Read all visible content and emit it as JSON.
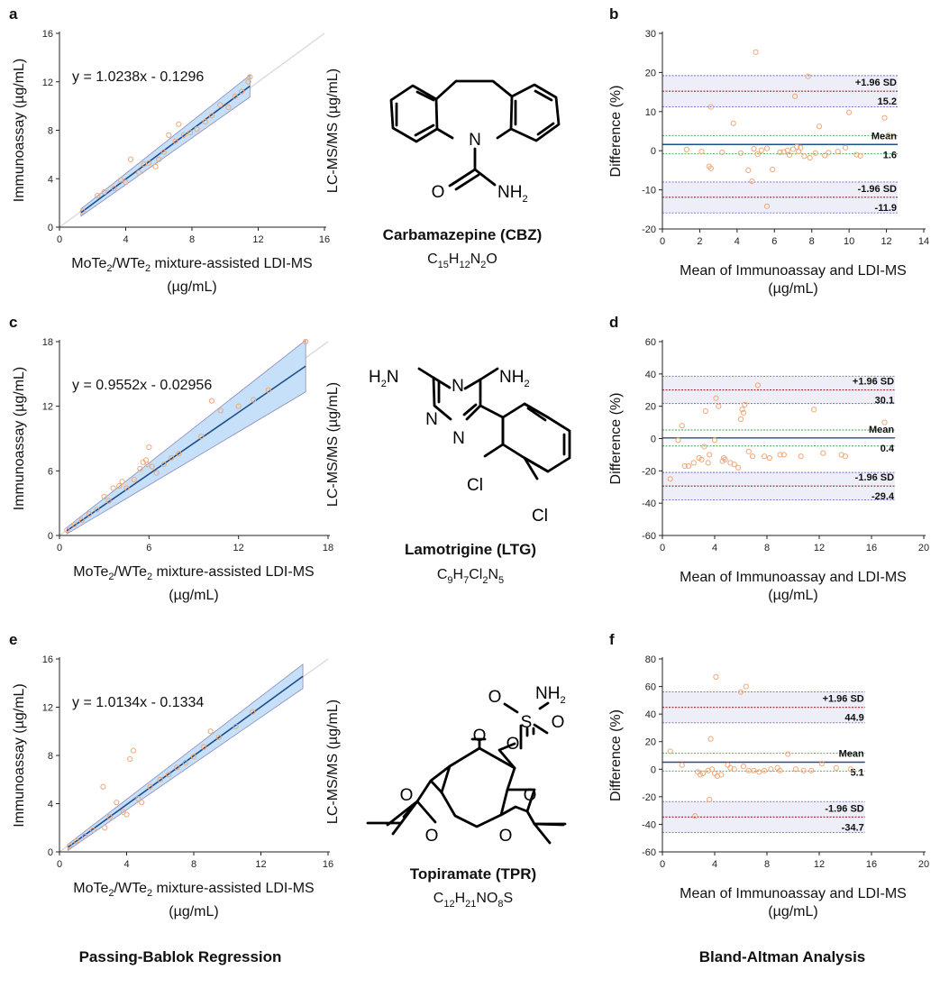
{
  "chart_data": [
    {
      "panel": "a",
      "type": "scatter",
      "xlabel_parts": [
        "MoTe",
        "2",
        "/WTe",
        "2",
        " mixture-assisted LDI-MS"
      ],
      "xlabel_line2": "(µg/mL)",
      "ylabel": "Immunoassay (µg/mL)",
      "equation": "y = 1.0238x - 0.1296",
      "slope": 1.0238,
      "intercept": -0.1296,
      "xlim": [
        0,
        16
      ],
      "ylim": [
        0,
        16
      ],
      "xticks": [
        0,
        4,
        8,
        12,
        16
      ],
      "yticks": [
        0,
        4,
        8,
        12,
        16
      ],
      "fit_range": [
        1.3,
        11.5
      ],
      "ci_width": [
        0.3,
        0.9
      ],
      "points": [
        [
          1.4,
          1.3
        ],
        [
          2.3,
          2.6
        ],
        [
          2.7,
          2.9
        ],
        [
          3.3,
          3.2
        ],
        [
          3.7,
          3.9
        ],
        [
          4.0,
          3.7
        ],
        [
          4.3,
          5.6
        ],
        [
          4.8,
          4.5
        ],
        [
          5.1,
          5.2
        ],
        [
          5.4,
          5.3
        ],
        [
          5.8,
          5.0
        ],
        [
          6.0,
          5.6
        ],
        [
          6.3,
          6.2
        ],
        [
          6.6,
          7.6
        ],
        [
          7.0,
          7.1
        ],
        [
          7.2,
          8.5
        ],
        [
          7.5,
          7.6
        ],
        [
          7.9,
          7.8
        ],
        [
          8.3,
          8.1
        ],
        [
          8.8,
          8.7
        ],
        [
          9.2,
          9.2
        ],
        [
          9.7,
          10.1
        ],
        [
          10.2,
          9.9
        ],
        [
          10.6,
          10.8
        ],
        [
          11.0,
          11.2
        ],
        [
          11.4,
          12.0
        ],
        [
          11.5,
          12.4
        ]
      ]
    },
    {
      "panel": "b",
      "type": "scatter",
      "xlabel": "Mean of Immunoassay and LDI-MS",
      "xlabel_line2": "(µg/mL)",
      "ylabel": "Difference (%)",
      "xlim": [
        0,
        14
      ],
      "ylim": [
        -20,
        30
      ],
      "xticks": [
        0,
        2,
        4,
        6,
        8,
        10,
        12,
        14
      ],
      "yticks": [
        -20,
        -10,
        0,
        10,
        20,
        30
      ],
      "mean": 1.6,
      "upper": 15.2,
      "lower": -11.9,
      "mean_ci": [
        -0.8,
        3.9
      ],
      "upper_ci": [
        11.2,
        19.2
      ],
      "lower_ci": [
        -15.9,
        -8.0
      ],
      "line_end_x": 12.6,
      "labels": {
        "upper": "+1.96 SD",
        "upper_val": "15.2",
        "mean": "Mean",
        "mean_val": "1.6",
        "lower": "-1.96 SD",
        "lower_val": "-11.9"
      },
      "points": [
        [
          1.3,
          0.3
        ],
        [
          2.1,
          -0.2
        ],
        [
          2.5,
          -4.0
        ],
        [
          2.6,
          -4.5
        ],
        [
          2.6,
          11.2
        ],
        [
          3.2,
          -0.4
        ],
        [
          3.8,
          7.0
        ],
        [
          4.2,
          -0.6
        ],
        [
          4.6,
          -5.0
        ],
        [
          4.8,
          -7.8
        ],
        [
          4.9,
          0.5
        ],
        [
          5.0,
          25.2
        ],
        [
          5.1,
          -0.9
        ],
        [
          5.3,
          0.1
        ],
        [
          5.6,
          -14.2
        ],
        [
          5.6,
          0.6
        ],
        [
          5.9,
          -4.8
        ],
        [
          6.3,
          -0.4
        ],
        [
          6.5,
          -0.3
        ],
        [
          6.7,
          0.1
        ],
        [
          6.8,
          -1.1
        ],
        [
          7.0,
          0.4
        ],
        [
          7.1,
          13.9
        ],
        [
          7.2,
          1.0
        ],
        [
          7.3,
          -0.2
        ],
        [
          7.4,
          0.8
        ],
        [
          7.6,
          -1.4
        ],
        [
          7.8,
          19.0
        ],
        [
          7.9,
          -1.8
        ],
        [
          8.2,
          -0.6
        ],
        [
          8.4,
          6.2
        ],
        [
          8.7,
          -1.2
        ],
        [
          8.9,
          -0.5
        ],
        [
          9.4,
          -0.2
        ],
        [
          9.8,
          0.8
        ],
        [
          10.0,
          9.8
        ],
        [
          10.4,
          -1.0
        ],
        [
          10.6,
          -1.3
        ],
        [
          11.9,
          8.4
        ],
        [
          12.1,
          4.0
        ]
      ]
    },
    {
      "panel": "c",
      "type": "scatter",
      "xlabel_parts": [
        "MoTe",
        "2",
        "/WTe",
        "2",
        " mixture-assisted LDI-MS"
      ],
      "xlabel_line2": "(µg/mL)",
      "ylabel": "Immunoassay (µg/mL)",
      "equation": "y = 0.9552x - 0.02956",
      "slope": 0.9552,
      "intercept": -0.02956,
      "xlim": [
        0,
        18
      ],
      "ylim": [
        0,
        18
      ],
      "xticks": [
        0,
        6,
        12,
        18
      ],
      "yticks": [
        0,
        6,
        12,
        18
      ],
      "fit_range": [
        0.5,
        16.5
      ],
      "ci_width": [
        0.3,
        2.4
      ],
      "points": [
        [
          0.5,
          0.5
        ],
        [
          1.0,
          1.0
        ],
        [
          1.5,
          1.4
        ],
        [
          2.0,
          2.0
        ],
        [
          2.5,
          2.4
        ],
        [
          3.0,
          3.6
        ],
        [
          3.3,
          3.2
        ],
        [
          3.6,
          4.4
        ],
        [
          4.0,
          4.6
        ],
        [
          4.2,
          5.0
        ],
        [
          4.5,
          4.4
        ],
        [
          5.0,
          5.2
        ],
        [
          5.4,
          6.2
        ],
        [
          5.6,
          6.8
        ],
        [
          5.8,
          7.0
        ],
        [
          5.9,
          6.6
        ],
        [
          6.0,
          8.2
        ],
        [
          6.2,
          6.4
        ],
        [
          6.5,
          5.8
        ],
        [
          7.0,
          6.6
        ],
        [
          7.5,
          7.2
        ],
        [
          8.0,
          7.6
        ],
        [
          9.5,
          9.2
        ],
        [
          10.2,
          12.5
        ],
        [
          10.8,
          11.6
        ],
        [
          12.0,
          12.0
        ],
        [
          13.0,
          12.6
        ],
        [
          14.0,
          13.5
        ],
        [
          16.5,
          18.0
        ]
      ]
    },
    {
      "panel": "d",
      "type": "scatter",
      "xlabel": "Mean of Immunoassay and LDI-MS",
      "xlabel_line2": "(µg/mL)",
      "ylabel": "Difference (%)",
      "xlim": [
        0,
        20
      ],
      "ylim": [
        -60,
        60
      ],
      "xticks": [
        0,
        4,
        8,
        12,
        16,
        20
      ],
      "yticks": [
        -60,
        -40,
        -20,
        0,
        20,
        40,
        60
      ],
      "mean": 0.4,
      "upper": 30.1,
      "lower": -29.4,
      "mean_ci": [
        -4.6,
        5.3
      ],
      "upper_ci": [
        21.7,
        38.6
      ],
      "lower_ci": [
        -37.9,
        -21.0
      ],
      "line_end_x": 17.8,
      "labels": {
        "upper": "+1.96 SD",
        "upper_val": "30.1",
        "mean": "Mean",
        "mean_val": "0.4",
        "lower": "-1.96 SD",
        "lower_val": "-29.4"
      },
      "points": [
        [
          0.6,
          -25
        ],
        [
          1.2,
          -1
        ],
        [
          1.5,
          8
        ],
        [
          1.7,
          -17
        ],
        [
          2.0,
          -17
        ],
        [
          2.4,
          -15
        ],
        [
          2.8,
          -12
        ],
        [
          3.0,
          -13
        ],
        [
          3.2,
          -5
        ],
        [
          3.3,
          17
        ],
        [
          3.5,
          -15
        ],
        [
          3.6,
          -10
        ],
        [
          4.0,
          -1
        ],
        [
          4.1,
          25
        ],
        [
          4.3,
          20
        ],
        [
          4.6,
          -14
        ],
        [
          4.7,
          -12
        ],
        [
          4.8,
          -13
        ],
        [
          5.2,
          -15
        ],
        [
          5.5,
          -16
        ],
        [
          5.8,
          -18
        ],
        [
          6.0,
          12
        ],
        [
          6.1,
          18
        ],
        [
          6.2,
          16
        ],
        [
          6.3,
          21
        ],
        [
          6.6,
          -8
        ],
        [
          6.9,
          -11
        ],
        [
          7.3,
          33
        ],
        [
          7.8,
          -11
        ],
        [
          8.2,
          -12
        ],
        [
          9.0,
          -10
        ],
        [
          9.3,
          -10
        ],
        [
          10.6,
          -11
        ],
        [
          11.6,
          18
        ],
        [
          12.3,
          -9
        ],
        [
          13.7,
          -10
        ],
        [
          14.0,
          -11
        ],
        [
          17.0,
          10
        ]
      ]
    },
    {
      "panel": "e",
      "type": "scatter",
      "xlabel_parts": [
        "MoTe",
        "2",
        "/WTe",
        "2",
        " mixture-assisted LDI-MS"
      ],
      "xlabel_line2": "(µg/mL)",
      "ylabel": "Immunoassay (µg/mL)",
      "equation": "y = 1.0134x - 0.1334",
      "slope": 1.0134,
      "intercept": -0.1334,
      "xlim": [
        0,
        16
      ],
      "ylim": [
        0,
        16
      ],
      "xticks": [
        0,
        4,
        8,
        12,
        16
      ],
      "yticks": [
        0,
        4,
        8,
        12,
        16
      ],
      "fit_range": [
        0.5,
        14.5
      ],
      "ci_width": [
        0.25,
        1.0
      ],
      "points": [
        [
          0.6,
          0.5
        ],
        [
          1.0,
          0.9
        ],
        [
          1.5,
          1.3
        ],
        [
          2.0,
          1.8
        ],
        [
          2.6,
          5.4
        ],
        [
          2.7,
          2.0
        ],
        [
          3.0,
          2.9
        ],
        [
          3.4,
          4.1
        ],
        [
          3.8,
          3.3
        ],
        [
          4.0,
          3.1
        ],
        [
          4.2,
          7.7
        ],
        [
          4.4,
          8.4
        ],
        [
          4.7,
          4.4
        ],
        [
          4.9,
          4.1
        ],
        [
          5.4,
          5.4
        ],
        [
          6.0,
          6.0
        ],
        [
          6.5,
          6.4
        ],
        [
          7.0,
          7.0
        ],
        [
          7.5,
          7.4
        ],
        [
          8.0,
          7.9
        ],
        [
          8.6,
          8.7
        ],
        [
          9.0,
          10.0
        ],
        [
          9.5,
          9.5
        ],
        [
          10.5,
          10.4
        ],
        [
          11.5,
          11.6
        ]
      ]
    },
    {
      "panel": "f",
      "type": "scatter",
      "xlabel": "Mean of Immunoassay and LDI-MS",
      "xlabel_line2": "(µg/mL)",
      "ylabel": "Difference (%)",
      "xlim": [
        0,
        20
      ],
      "ylim": [
        -60,
        80
      ],
      "xticks": [
        0,
        4,
        8,
        12,
        16,
        20
      ],
      "yticks": [
        -60,
        -40,
        -20,
        0,
        20,
        40,
        60,
        80
      ],
      "mean": 5.1,
      "upper": 44.9,
      "lower": -34.7,
      "mean_ci": [
        -1.3,
        11.5
      ],
      "upper_ci": [
        33.7,
        56.1
      ],
      "lower_ci": [
        -45.9,
        -23.5
      ],
      "line_end_x": 15.5,
      "labels": {
        "upper": "+1.96 SD",
        "upper_val": "44.9",
        "mean": "Mean",
        "mean_val": "5.1",
        "lower": "-1.96 SD",
        "lower_val": "-34.7"
      },
      "points": [
        [
          0.6,
          13
        ],
        [
          1.5,
          3
        ],
        [
          2.5,
          -34
        ],
        [
          2.7,
          -2
        ],
        [
          2.9,
          -4
        ],
        [
          3.1,
          -3
        ],
        [
          3.5,
          -1
        ],
        [
          3.6,
          -22
        ],
        [
          3.7,
          22
        ],
        [
          3.8,
          0
        ],
        [
          4.0,
          -3
        ],
        [
          4.1,
          67
        ],
        [
          4.2,
          -5
        ],
        [
          4.5,
          -4
        ],
        [
          5.0,
          3
        ],
        [
          5.2,
          1
        ],
        [
          5.5,
          0
        ],
        [
          6.0,
          56
        ],
        [
          6.2,
          2
        ],
        [
          6.4,
          60
        ],
        [
          6.6,
          -1
        ],
        [
          7.0,
          -1
        ],
        [
          7.4,
          -2
        ],
        [
          7.8,
          -1
        ],
        [
          8.3,
          0
        ],
        [
          8.8,
          1
        ],
        [
          9.0,
          -1
        ],
        [
          9.6,
          11
        ],
        [
          10.2,
          0
        ],
        [
          10.8,
          -1
        ],
        [
          11.4,
          -1
        ],
        [
          12.2,
          4
        ],
        [
          13.3,
          1
        ],
        [
          14.4,
          0
        ]
      ]
    }
  ],
  "molecules": [
    {
      "name": "Carbamazepine (CBZ)",
      "formula": [
        [
          "C",
          ""
        ],
        [
          "15",
          "sub"
        ],
        [
          "H",
          ""
        ],
        [
          "12",
          "sub"
        ],
        [
          "N",
          ""
        ],
        [
          "2",
          "sub"
        ],
        [
          "O",
          ""
        ]
      ],
      "atoms": {
        "n": "N",
        "o": "O",
        "nh2": "NH",
        "nh2_sub": "2"
      }
    },
    {
      "name": "Lamotrigine (LTG)",
      "formula": [
        [
          "C",
          ""
        ],
        [
          "9",
          "sub"
        ],
        [
          "H",
          ""
        ],
        [
          "7",
          "sub"
        ],
        [
          "Cl",
          ""
        ],
        [
          "2",
          "sub"
        ],
        [
          "N",
          ""
        ],
        [
          "5",
          "sub"
        ]
      ],
      "atoms": {
        "n1": "N",
        "n2": "N",
        "n3": "N",
        "nh2_left": "H",
        "nh2_left_sub": "2",
        "nh2_left_n": "N",
        "nh2_right": "NH",
        "nh2_right_sub": "2",
        "cl1": "Cl",
        "cl2": "Cl"
      }
    },
    {
      "name": "Topiramate (TPR)",
      "formula": [
        [
          "C",
          ""
        ],
        [
          "12",
          "sub"
        ],
        [
          "H",
          ""
        ],
        [
          "21",
          "sub"
        ],
        [
          "N",
          ""
        ],
        [
          "O",
          ""
        ],
        [
          "8",
          "sub"
        ],
        [
          "S",
          ""
        ]
      ],
      "atoms": {
        "o1": "O",
        "s": "S",
        "o2": "O",
        "nh2": "NH",
        "nh2_sub": "2",
        "o3": "O",
        "o_ring": "O",
        "o4": "O",
        "o5": "O",
        "o6": "O",
        "o7": "O"
      }
    }
  ],
  "side_label": "LC-MS/MS (µg/mL)",
  "bottom_labels": {
    "left": "Passing-Bablok Regression",
    "right": "Bland-Altman Analysis"
  },
  "colors": {
    "ci_fill": "#c5e0f8",
    "ci_edge": "#8a8ac0",
    "fit_line": "#1f4e8c",
    "identity": "#d8d8d8",
    "point": "#f0a878",
    "sd_line": "#9b2b2b",
    "ci_line": "#6a6ad8",
    "mean_line": "#1f4e8c",
    "mean_ci": "#3aa04a",
    "band": "#eeeef8"
  }
}
